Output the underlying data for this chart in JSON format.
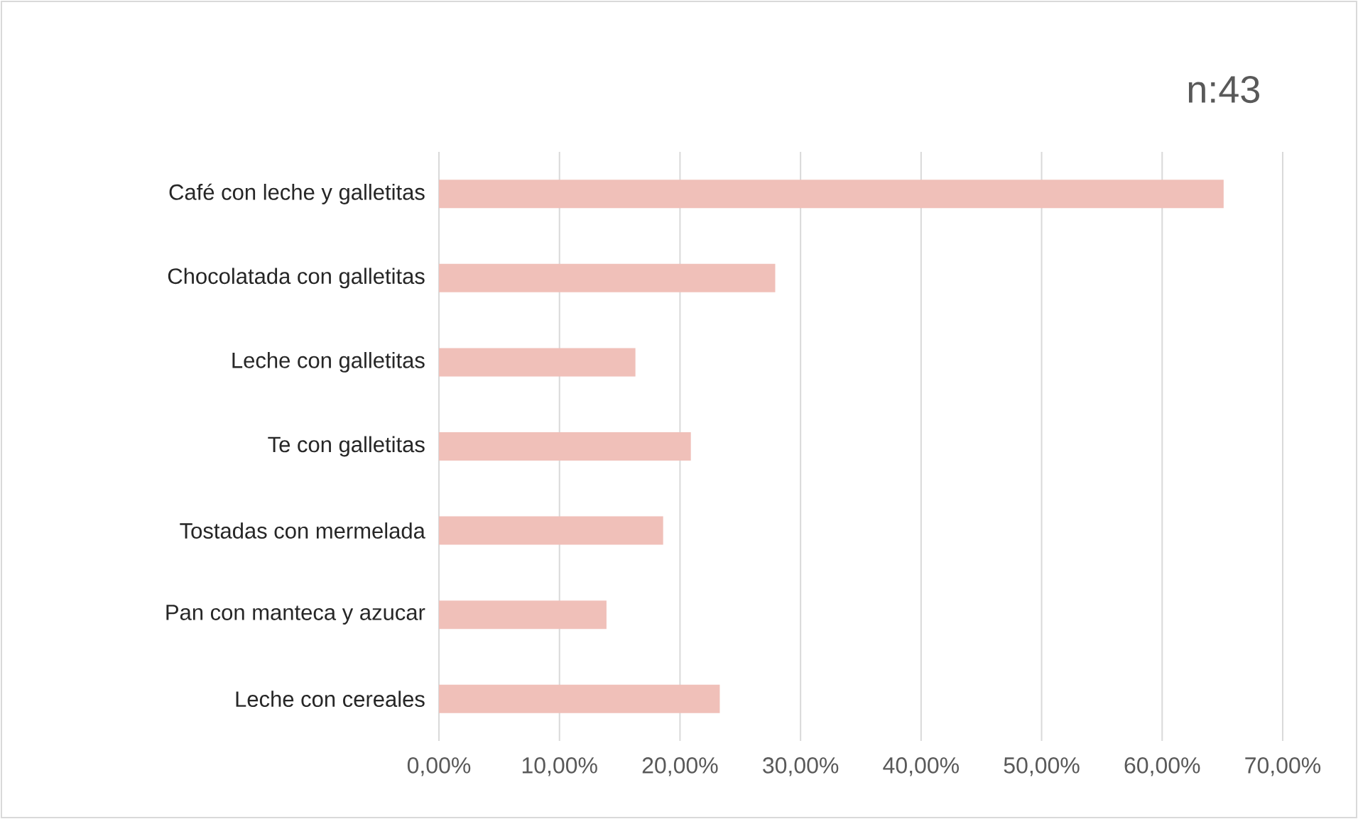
{
  "chart_data": {
    "type": "bar",
    "orientation": "horizontal",
    "title": "n:43",
    "categories": [
      "Café con leche y galletitas",
      "Chocolatada con galletitas",
      "Leche con galletitas",
      "Te con galletitas",
      "Tostadas con mermelada",
      "Pan con manteca y azucar",
      "Leche con cereales"
    ],
    "values": [
      65.1,
      27.9,
      16.3,
      20.9,
      18.6,
      13.9,
      23.3
    ],
    "color": "#f0c0b9",
    "xlim": [
      0,
      70
    ],
    "xticks": [
      {
        "value": 0,
        "label": "0,00%"
      },
      {
        "value": 10,
        "label": "10,00%"
      },
      {
        "value": 20,
        "label": "20,00%"
      },
      {
        "value": 30,
        "label": "30,00%"
      },
      {
        "value": 40,
        "label": "40,00%"
      },
      {
        "value": 50,
        "label": "50,00%"
      },
      {
        "value": 60,
        "label": "60,00%"
      },
      {
        "value": 70,
        "label": "70,00%"
      }
    ],
    "grid": "x"
  }
}
